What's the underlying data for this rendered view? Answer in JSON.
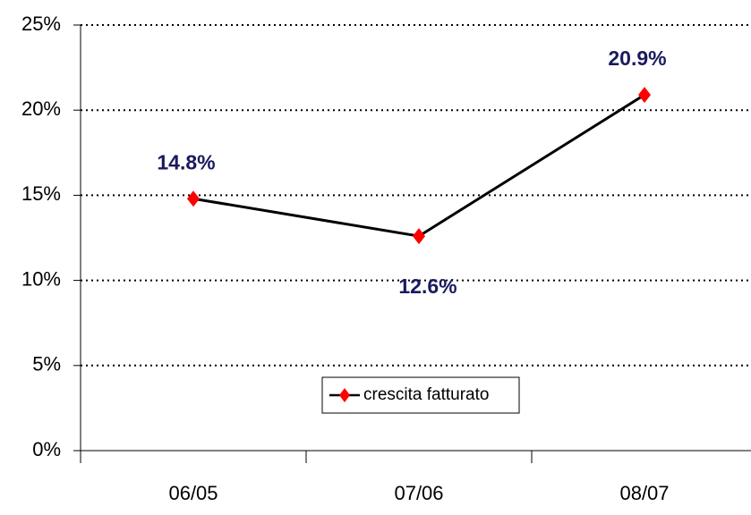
{
  "chart_data": {
    "type": "line",
    "categories": [
      "06/05",
      "07/06",
      "08/07"
    ],
    "series": [
      {
        "name": "crescita fatturato",
        "color": "#000000",
        "marker_color": "#ff0000",
        "values": [
          14.8,
          12.6,
          20.9
        ],
        "value_labels": [
          "14.8%",
          "12.6%",
          "20.9%"
        ]
      }
    ],
    "ylim": [
      0,
      25
    ],
    "yticks": [
      {
        "value": 0,
        "label": "0%"
      },
      {
        "value": 5,
        "label": "5%"
      },
      {
        "value": 10,
        "label": "10%"
      },
      {
        "value": 15,
        "label": "15%"
      },
      {
        "value": 20,
        "label": "20%"
      },
      {
        "value": 25,
        "label": "25%"
      }
    ],
    "grid": true
  }
}
